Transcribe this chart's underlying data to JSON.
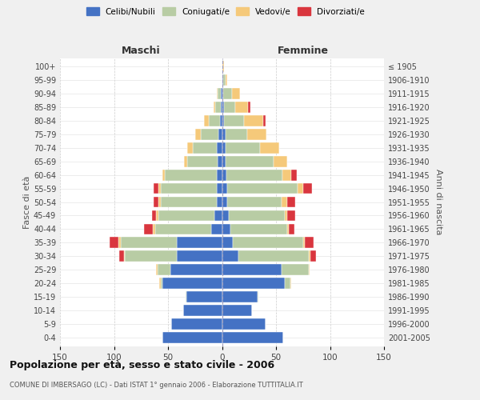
{
  "age_groups": [
    "0-4",
    "5-9",
    "10-14",
    "15-19",
    "20-24",
    "25-29",
    "30-34",
    "35-39",
    "40-44",
    "45-49",
    "50-54",
    "55-59",
    "60-64",
    "65-69",
    "70-74",
    "75-79",
    "80-84",
    "85-89",
    "90-94",
    "95-99",
    "100+"
  ],
  "birth_years": [
    "2001-2005",
    "1996-2000",
    "1991-1995",
    "1986-1990",
    "1981-1985",
    "1976-1980",
    "1971-1975",
    "1966-1970",
    "1961-1965",
    "1956-1960",
    "1951-1955",
    "1946-1950",
    "1941-1945",
    "1936-1940",
    "1931-1935",
    "1926-1930",
    "1921-1925",
    "1916-1920",
    "1911-1915",
    "1906-1910",
    "≤ 1905"
  ],
  "colors": {
    "celibi": "#4472c4",
    "coniugati": "#b8cca4",
    "vedovi": "#f5c97a",
    "divorziati": "#d9363e"
  },
  "males": {
    "celibi": [
      55,
      47,
      36,
      33,
      55,
      48,
      42,
      42,
      10,
      7,
      5,
      5,
      5,
      4,
      5,
      3,
      2,
      1,
      1,
      0,
      0
    ],
    "coniugati": [
      0,
      0,
      0,
      1,
      2,
      12,
      48,
      52,
      52,
      52,
      52,
      52,
      48,
      28,
      22,
      17,
      10,
      5,
      3,
      0,
      0
    ],
    "vedovi": [
      0,
      0,
      0,
      0,
      1,
      1,
      1,
      2,
      2,
      2,
      2,
      2,
      2,
      3,
      5,
      5,
      5,
      2,
      1,
      0,
      0
    ],
    "divorziati": [
      0,
      0,
      0,
      0,
      0,
      0,
      4,
      8,
      8,
      4,
      4,
      4,
      0,
      0,
      0,
      0,
      0,
      0,
      0,
      0,
      0
    ]
  },
  "females": {
    "celibi": [
      57,
      40,
      28,
      33,
      58,
      55,
      15,
      10,
      8,
      6,
      5,
      5,
      4,
      3,
      3,
      3,
      2,
      2,
      1,
      1,
      0
    ],
    "coniugati": [
      0,
      0,
      0,
      1,
      5,
      25,
      65,
      65,
      52,
      52,
      50,
      65,
      52,
      45,
      32,
      20,
      18,
      10,
      8,
      2,
      0
    ],
    "vedovi": [
      0,
      0,
      0,
      0,
      1,
      1,
      2,
      2,
      2,
      2,
      5,
      5,
      8,
      12,
      18,
      18,
      18,
      12,
      8,
      2,
      2
    ],
    "divorziati": [
      0,
      0,
      0,
      0,
      0,
      0,
      5,
      8,
      5,
      8,
      8,
      8,
      5,
      0,
      0,
      0,
      2,
      2,
      0,
      0,
      0
    ]
  },
  "title": "Popolazione per età, sesso e stato civile - 2006",
  "subtitle": "COMUNE DI IMBERSAGO (LC) - Dati ISTAT 1° gennaio 2006 - Elaborazione TUTTITALIA.IT",
  "xlabel_left": "Maschi",
  "xlabel_right": "Femmine",
  "ylabel_left": "Fasce di età",
  "ylabel_right": "Anni di nascita",
  "xlim": 150,
  "fig_bg": "#f0f0f0",
  "plot_bg": "#ffffff"
}
